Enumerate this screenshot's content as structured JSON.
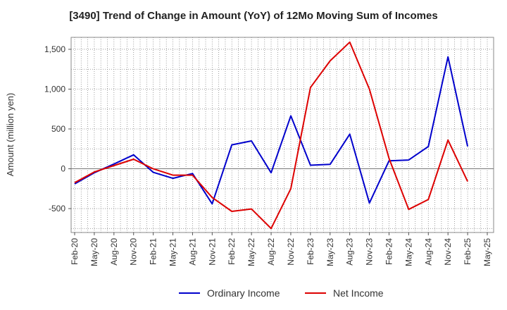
{
  "chart_data": {
    "type": "line",
    "title": "[3490]  Trend of Change in Amount (YoY) of 12Mo Moving Sum of Incomes",
    "xlabel": "",
    "ylabel": "Amount (million yen)",
    "ylim": [
      -800,
      1650
    ],
    "yticks": [
      -500,
      0,
      500,
      1000,
      1500
    ],
    "ytick_labels": [
      "-500",
      "0",
      "500",
      "1,000",
      "1,500"
    ],
    "grid": true,
    "legend_position": "bottom-center",
    "tick_labels": [
      "Feb-20",
      "May-20",
      "Aug-20",
      "Nov-20",
      "Feb-21",
      "May-21",
      "Aug-21",
      "Nov-21",
      "Feb-22",
      "May-22",
      "Aug-22",
      "Nov-22",
      "Feb-23",
      "May-23",
      "Aug-23",
      "Nov-23",
      "Feb-24",
      "May-24",
      "Aug-24",
      "Nov-24",
      "Feb-25",
      "May-25"
    ],
    "x": [
      "Feb-20",
      "May-20",
      "Aug-20",
      "Nov-20",
      "Feb-21",
      "May-21",
      "Aug-21",
      "Nov-21",
      "Feb-22",
      "May-22",
      "Aug-22",
      "Nov-22",
      "Feb-23",
      "May-23",
      "Aug-23",
      "Nov-23",
      "Feb-24",
      "May-24",
      "Aug-24",
      "Nov-24",
      "Feb-25"
    ],
    "series": [
      {
        "name": "Ordinary Income",
        "color": "#0000cc",
        "values": [
          -190,
          -50,
          60,
          175,
          -45,
          -120,
          -60,
          -440,
          300,
          350,
          -50,
          665,
          45,
          55,
          435,
          -430,
          100,
          110,
          280,
          1405,
          280
        ]
      },
      {
        "name": "Net Income",
        "color": "#dd0000",
        "values": [
          -175,
          -40,
          40,
          120,
          0,
          -80,
          -80,
          -360,
          -535,
          -505,
          -750,
          -250,
          1020,
          1355,
          1590,
          1000,
          130,
          -510,
          -385,
          360,
          -160
        ]
      }
    ]
  }
}
